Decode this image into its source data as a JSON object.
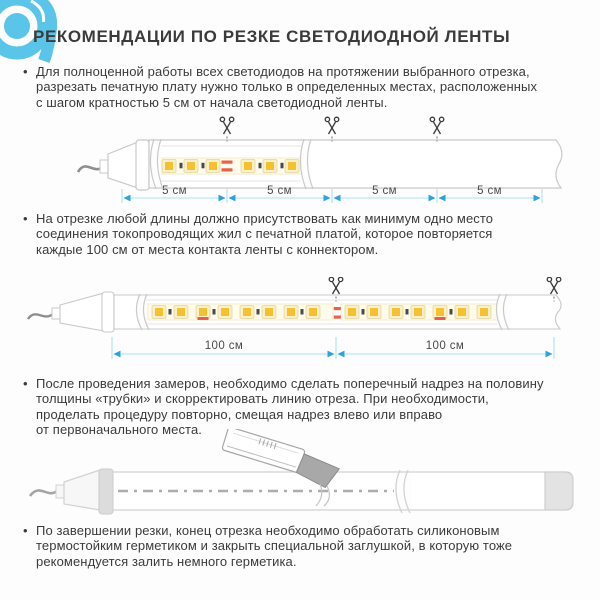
{
  "page": {
    "title": "РЕКОМЕНДАЦИИ ПО РЕЗКЕ СВЕТОДИОДНОЙ ЛЕНТЫ"
  },
  "bullets": [
    {
      "lines": [
        "Для полноценной работы всех светодиодов на протяжении выбранного отрезка,",
        "разрезать печатную плату нужно только в определенных местах, расположенных",
        "с шагом кратностью 5 см от начала светодиодной ленты."
      ]
    },
    {
      "lines": [
        "На отрезке любой длины должно присутствовать как минимум одно место",
        "соединения токопроводящих жил с печатной платой, которое повторяется",
        "каждые 100 см от места контакта ленты с коннектором."
      ]
    },
    {
      "lines": [
        "После проведения замеров, необходимо сделать поперечный надрез на половину",
        "толщины «трубки» и скорректировать линию отреза. При необходимости,",
        "проделать процедуру повторно, смещая надрез влево или вправо",
        "от первоначального места."
      ]
    },
    {
      "lines": [
        "По завершении резки, конец отрезка необходимо обработать силиконовым",
        "термостойким герметиком и закрыть специальной заглушкой, в которую тоже",
        "рекомендуется залить немного герметика."
      ]
    }
  ],
  "diagram_5cm": {
    "segment_labels": [
      "5 см",
      "5 см",
      "5 см",
      "5 см"
    ],
    "cut_points": 3
  },
  "diagram_100cm": {
    "segment_labels": [
      "100 см",
      "100 см"
    ],
    "cut_points": 2
  },
  "icons": {
    "bullet": "•",
    "scissors": "scissors-cut-mark",
    "knife": "utility-knife"
  },
  "colors": {
    "brand_blue": "#5BC4E9",
    "dimension_arrow": "#2FA3D7",
    "dimension_line": "#AEDFF3",
    "text": "#3B3B3B",
    "outline_gray": "#C9C9C9",
    "led_yellow": "#F5C133",
    "led_pale": "#FAF1CB",
    "pad_red": "#E8604C",
    "blade_gray": "#A8A8A8"
  }
}
